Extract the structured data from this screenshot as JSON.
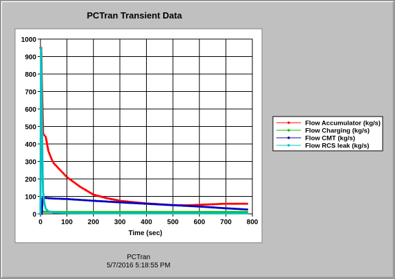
{
  "window": {
    "title": "PCTran Transient Data",
    "footer_app": "PCTran",
    "footer_timestamp": "5/7/2016 5:18:55 PM"
  },
  "colors": {
    "frame": "#c0c0c0",
    "plot_bg": "#ffffff",
    "grid": "#000000",
    "accumulator": "#ff0000",
    "charging": "#00c000",
    "cmt": "#0000c0",
    "rcs_leak": "#00c0c0"
  },
  "chart_data": {
    "type": "line",
    "title": "PCTran Transient Data",
    "xlabel": "Time (sec)",
    "ylabel": "",
    "xlim": [
      0,
      800
    ],
    "ylim": [
      0,
      1000
    ],
    "x_ticks": [
      "0",
      "100",
      "200",
      "300",
      "400",
      "500",
      "600",
      "700",
      "800"
    ],
    "y_ticks": [
      "0",
      "100",
      "200",
      "300",
      "400",
      "500",
      "600",
      "700",
      "800",
      "900",
      "1000"
    ],
    "grid": true,
    "legend_position": "right",
    "series": [
      {
        "name": "Flow Accumulator (kg/s)",
        "color": "#ff0000",
        "x": [
          0,
          3,
          5,
          10,
          15,
          20,
          30,
          40,
          50,
          75,
          100,
          150,
          200,
          250,
          300,
          350,
          400,
          450,
          500,
          550,
          600,
          650,
          700,
          750,
          780
        ],
        "y": [
          950,
          950,
          780,
          460,
          450,
          440,
          360,
          320,
          290,
          250,
          210,
          155,
          110,
          90,
          75,
          67,
          60,
          55,
          50,
          49,
          52,
          55,
          58,
          58,
          58
        ]
      },
      {
        "name": "Flow Charging (kg/s)",
        "color": "#00c000",
        "x": [
          0,
          3,
          5,
          10,
          100,
          200,
          300,
          400,
          500,
          600,
          700,
          780
        ],
        "y": [
          0,
          0,
          15,
          12,
          10,
          10,
          10,
          10,
          10,
          10,
          10,
          10
        ]
      },
      {
        "name": "Flow CMT (kg/s)",
        "color": "#0000c0",
        "x": [
          0,
          5,
          8,
          10,
          50,
          100,
          150,
          200,
          300,
          400,
          500,
          600,
          700,
          780
        ],
        "y": [
          0,
          0,
          90,
          92,
          88,
          85,
          80,
          75,
          66,
          58,
          50,
          42,
          32,
          25
        ]
      },
      {
        "name": "Flow RCS leak (kg/s)",
        "color": "#00c0c0",
        "x": [
          0,
          2,
          4,
          6,
          8,
          10,
          15,
          20,
          30,
          50,
          100,
          200,
          400,
          600,
          780
        ],
        "y": [
          0,
          950,
          800,
          500,
          250,
          120,
          60,
          30,
          15,
          8,
          5,
          4,
          3,
          3,
          3
        ]
      }
    ]
  }
}
